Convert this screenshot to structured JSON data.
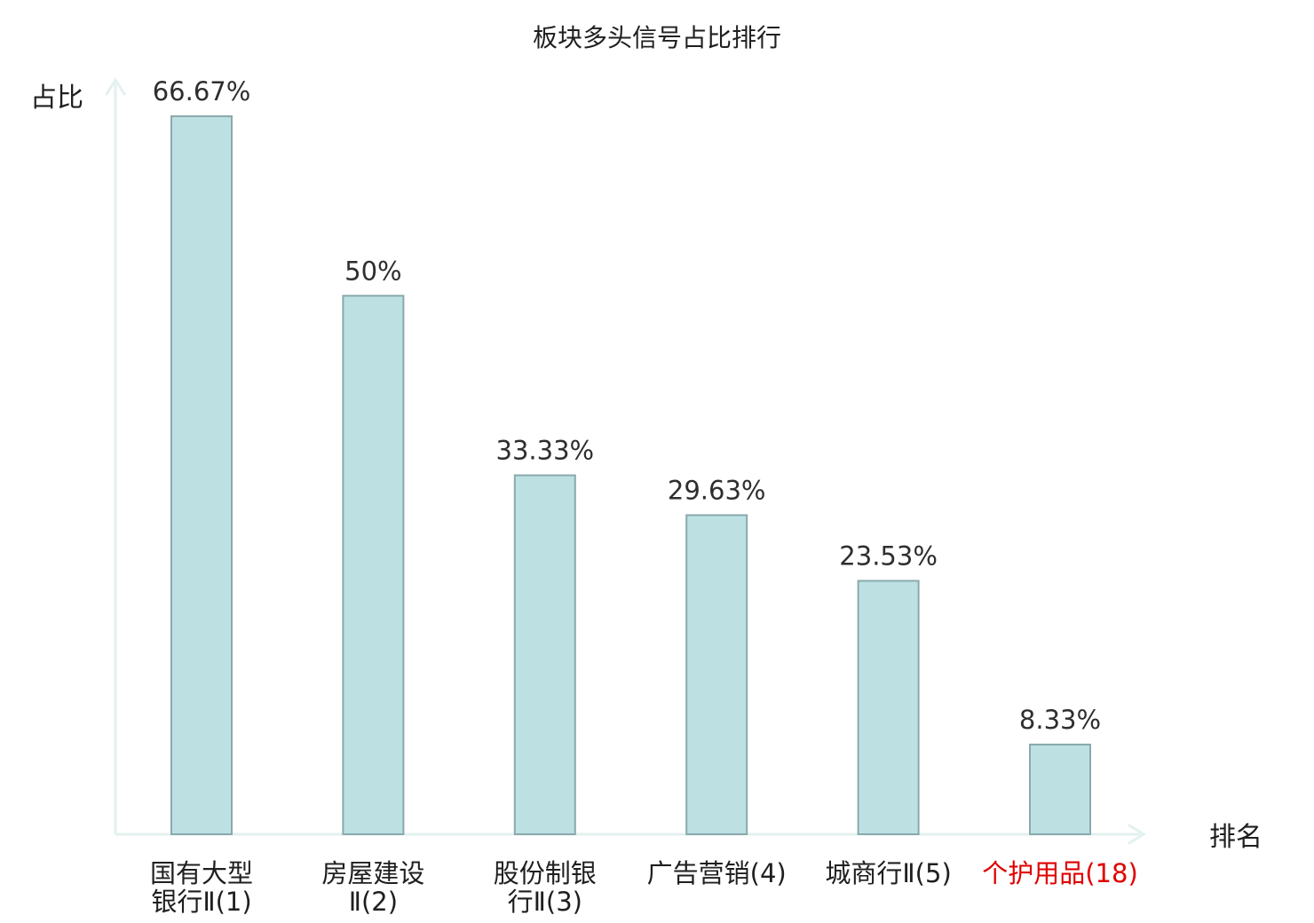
{
  "chart_data": {
    "type": "bar",
    "title": "板块多头信号占比排行",
    "ylabel": "占比",
    "xlabel": "排名",
    "grid": false,
    "ylim": [
      0,
      70
    ],
    "categories": [
      [
        "国有大型",
        "银行Ⅱ(1)"
      ],
      [
        "房屋建设",
        "Ⅱ(2)"
      ],
      [
        "股份制银",
        "行Ⅱ(3)"
      ],
      [
        "广告营销(4)"
      ],
      [
        "城商行Ⅱ(5)"
      ],
      [
        "个护用品(18)"
      ]
    ],
    "values": [
      66.67,
      50,
      33.33,
      29.63,
      23.53,
      8.33
    ],
    "value_labels": [
      "66.67%",
      "50%",
      "33.33%",
      "29.63%",
      "23.53%",
      "8.33%"
    ],
    "highlight_index": 5,
    "colors": {
      "bar_fill": "#bde0e3",
      "bar_stroke": "#8aa9ac",
      "axis": "#e2f1ef",
      "highlight_label": "#e00000",
      "text": "#1f1f1f"
    }
  }
}
